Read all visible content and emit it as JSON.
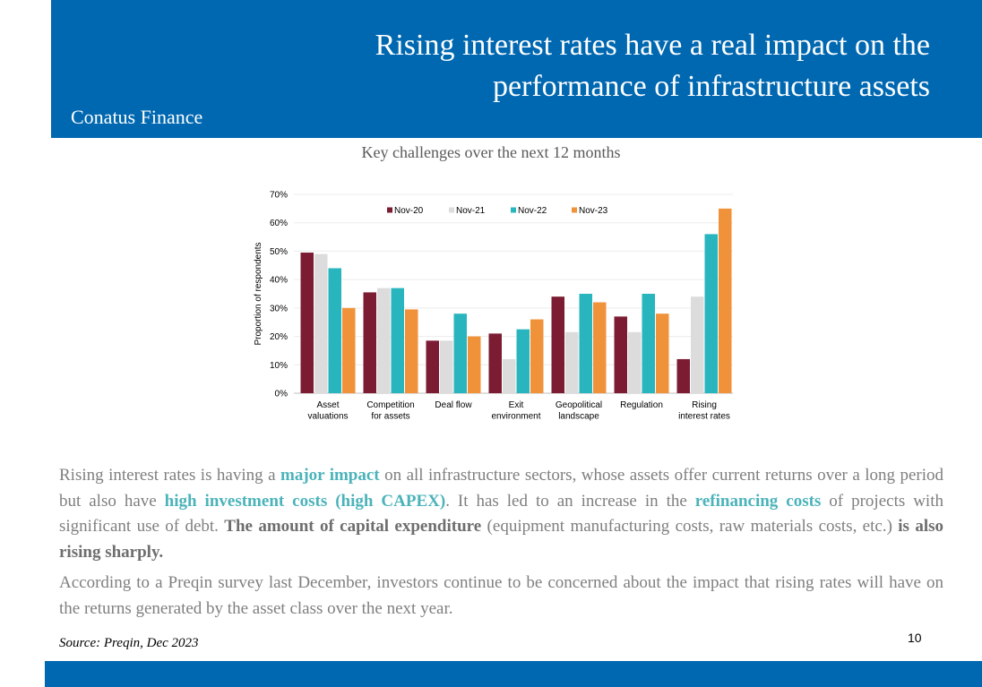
{
  "header": {
    "title_line1": "Rising interest rates have a real impact on the",
    "title_line2": "performance of infrastructure assets",
    "brand": "Conatus Finance"
  },
  "chart_title": "Key challenges over the next 12 months",
  "chart_data": {
    "type": "bar",
    "title": "",
    "xlabel": "",
    "ylabel": "Proportion of respondents",
    "ylim": [
      0,
      70
    ],
    "yticks": [
      "0%",
      "10%",
      "20%",
      "30%",
      "40%",
      "50%",
      "60%",
      "70%"
    ],
    "legend_position": "top",
    "categories": [
      [
        "Asset",
        "valuations"
      ],
      [
        "Competition",
        "for assets"
      ],
      [
        "Deal flow"
      ],
      [
        "Exit",
        "environment"
      ],
      [
        "Geopolitical",
        "landscape"
      ],
      [
        "Regulation"
      ],
      [
        "Rising",
        "interest rates"
      ]
    ],
    "series": [
      {
        "name": "Nov-20",
        "color": "#7b1c33",
        "values": [
          49.5,
          35.5,
          18.5,
          21,
          34,
          27,
          12
        ]
      },
      {
        "name": "Nov-21",
        "color": "#dcdcdc",
        "values": [
          49,
          37,
          18.5,
          12,
          21.5,
          21.5,
          34
        ]
      },
      {
        "name": "Nov-22",
        "color": "#29b5bd",
        "values": [
          44,
          37,
          28,
          22.5,
          35,
          35,
          56
        ]
      },
      {
        "name": "Nov-23",
        "color": "#f0923a",
        "values": [
          30,
          29.5,
          20,
          26,
          32,
          28,
          65
        ]
      }
    ]
  },
  "body": {
    "p1": [
      {
        "t": "Rising interest rates is having a ",
        "s": ""
      },
      {
        "t": "major impact",
        "s": "hl"
      },
      {
        "t": " on all infrastructure sectors, whose assets offer current returns over a long period but also have ",
        "s": ""
      },
      {
        "t": "high investment costs (high CAPEX)",
        "s": "hl"
      },
      {
        "t": ". It has led to an increase in the ",
        "s": ""
      },
      {
        "t": "refinancing costs",
        "s": "hl"
      },
      {
        "t": " of projects with significant use of debt. ",
        "s": ""
      },
      {
        "t": "The amount of capital expenditure",
        "s": "bd"
      },
      {
        "t": " (equipment manufacturing costs, raw materials costs, etc.) ",
        "s": ""
      },
      {
        "t": "is also rising sharply.",
        "s": "bd"
      }
    ],
    "p2": "According to a Preqin survey last December, investors continue to be concerned about the impact that rising rates will have on the returns generated by the asset class over the next year."
  },
  "source": "Source: Preqin, Dec 2023",
  "page_number": "10"
}
